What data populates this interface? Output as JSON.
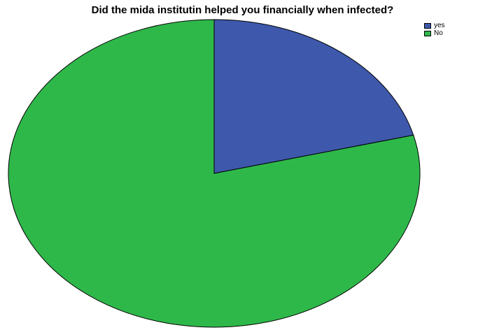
{
  "chart_data": {
    "type": "pie",
    "title": "Did the mida institutin helped you financially when infected?",
    "categories": [
      "yes",
      "No"
    ],
    "values": [
      21,
      79
    ],
    "colors": [
      "#3e58ac",
      "#2fb84a"
    ],
    "outline_color": "#000000",
    "legend_position": "top-right"
  }
}
